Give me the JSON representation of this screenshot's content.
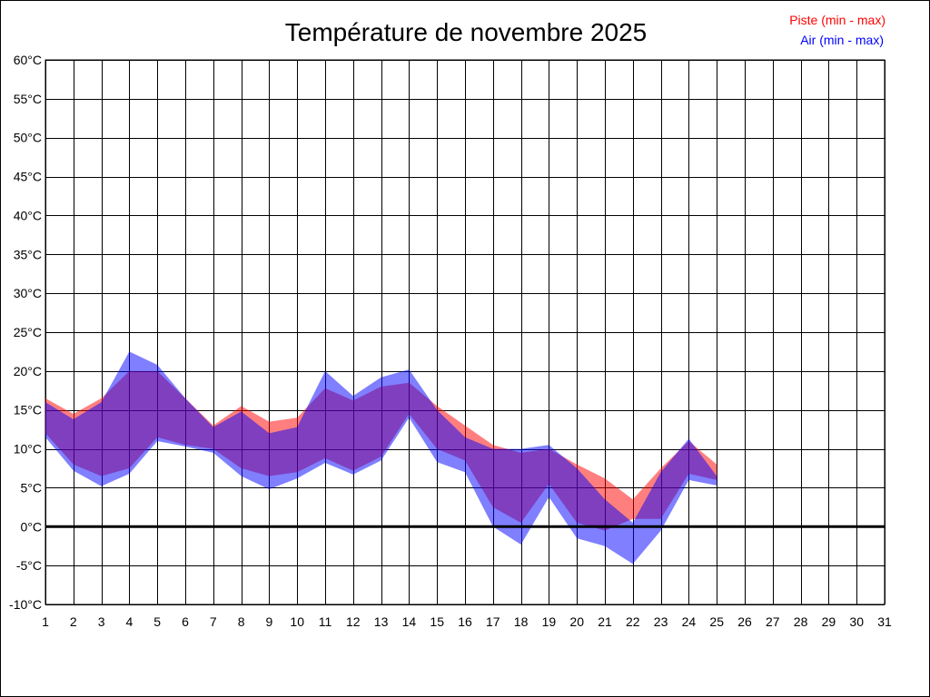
{
  "chart_data": {
    "type": "area",
    "title": "Température de novembre 2025",
    "xlabel": "",
    "ylabel": "",
    "x": [
      1,
      2,
      3,
      4,
      5,
      6,
      7,
      8,
      9,
      10,
      11,
      12,
      13,
      14,
      15,
      16,
      17,
      18,
      19,
      20,
      21,
      22,
      23,
      24,
      25
    ],
    "xticks": [
      "1",
      "2",
      "3",
      "4",
      "5",
      "6",
      "7",
      "8",
      "9",
      "10",
      "11",
      "12",
      "13",
      "14",
      "15",
      "16",
      "17",
      "18",
      "19",
      "20",
      "21",
      "22",
      "23",
      "24",
      "25",
      "26",
      "27",
      "28",
      "29",
      "30",
      "31"
    ],
    "xlim": [
      1,
      31
    ],
    "yticks": [
      "60°C",
      "55°C",
      "50°C",
      "45°C",
      "40°C",
      "35°C",
      "30°C",
      "25°C",
      "20°C",
      "15°C",
      "10°C",
      "5°C",
      "0°C",
      "-5°C",
      "-10°C"
    ],
    "ylim": [
      -10,
      60
    ],
    "grid": true,
    "legend_position": "top-right",
    "series": [
      {
        "name": "Piste (min - max)",
        "color": "#ff0000",
        "min": [
          12.0,
          8.0,
          6.5,
          7.5,
          11.5,
          10.5,
          10.0,
          7.5,
          6.5,
          7.0,
          8.8,
          7.2,
          9.0,
          14.5,
          10.0,
          8.5,
          2.5,
          0.5,
          5.5,
          0.5,
          -0.5,
          1.0,
          1.0,
          6.8,
          6.0
        ],
        "max": [
          16.5,
          14.5,
          16.5,
          20.0,
          20.0,
          16.5,
          13.0,
          15.5,
          13.5,
          14.0,
          17.8,
          16.2,
          18.0,
          18.5,
          15.5,
          13.0,
          10.5,
          9.5,
          10.0,
          8.0,
          6.2,
          3.5,
          7.5,
          11.0,
          8.0
        ]
      },
      {
        "name": "Air (min - max)",
        "color": "#0000ff",
        "min": [
          11.5,
          7.2,
          5.2,
          6.8,
          11.0,
          10.3,
          9.5,
          6.5,
          4.8,
          6.2,
          8.2,
          6.7,
          8.5,
          14.0,
          8.3,
          7.0,
          0.0,
          -2.3,
          3.8,
          -1.5,
          -2.5,
          -4.8,
          -0.5,
          6.0,
          5.3
        ],
        "max": [
          16.0,
          13.8,
          16.0,
          22.5,
          20.8,
          16.5,
          12.8,
          14.8,
          12.0,
          12.8,
          20.0,
          16.8,
          19.2,
          20.2,
          15.0,
          11.5,
          10.0,
          10.0,
          10.5,
          7.5,
          3.5,
          0.5,
          7.0,
          11.3,
          6.5
        ]
      }
    ]
  }
}
